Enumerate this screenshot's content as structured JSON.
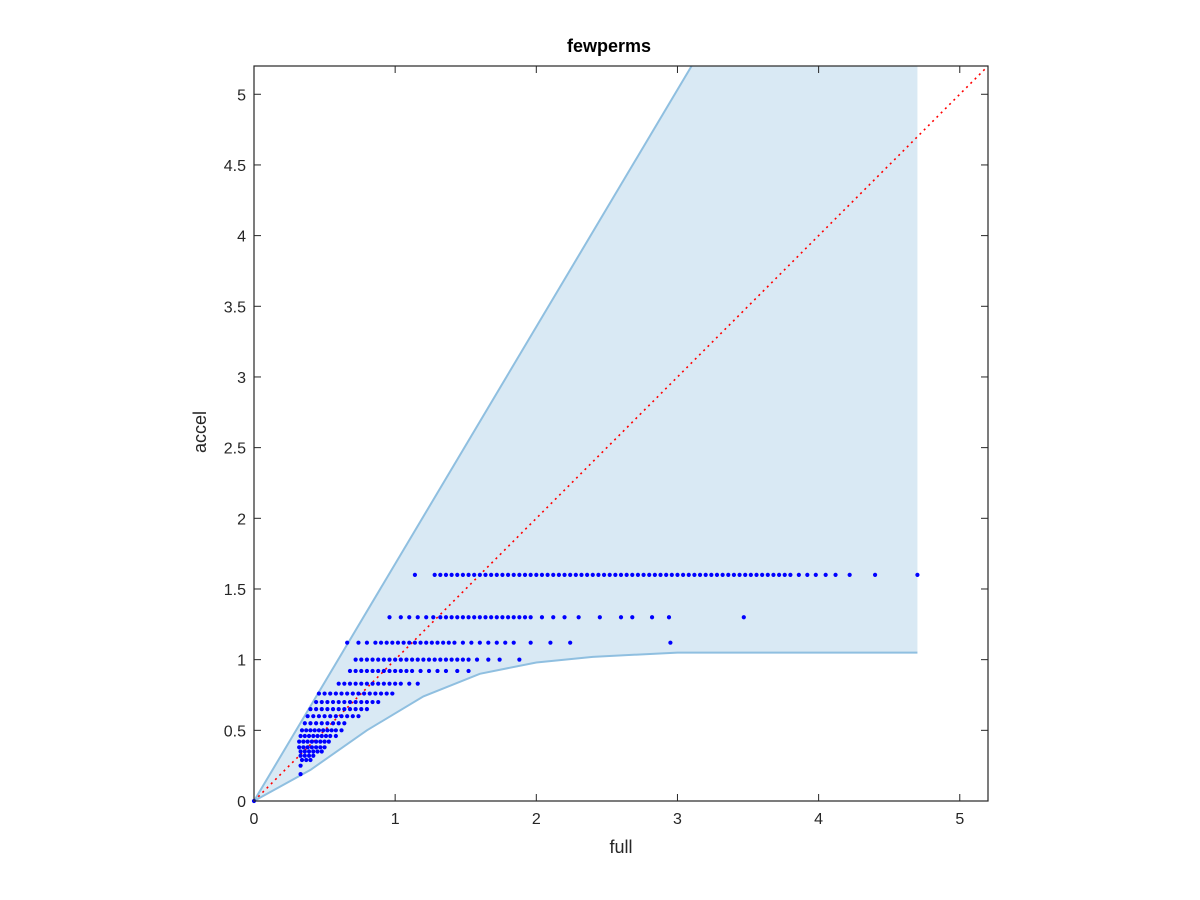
{
  "chart_data": {
    "type": "scatter",
    "title": "fewperms",
    "xlabel": "full",
    "ylabel": "accel",
    "xlim": [
      0,
      5.2
    ],
    "ylim": [
      0,
      5.2
    ],
    "xticks": [
      "0",
      "1",
      "2",
      "3",
      "4",
      "5"
    ],
    "yticks": [
      "0",
      "0.5",
      "1",
      "1.5",
      "2",
      "2.5",
      "3",
      "3.5",
      "4",
      "4.5",
      "5"
    ],
    "grid": false,
    "legend": "none",
    "colors": {
      "points": "#0000ff",
      "band_fill": "#d9e9f4",
      "band_edge": "#8fbfe0",
      "reference_line": "#ff0000",
      "axes": "#262626"
    },
    "reference_line": {
      "from": [
        0,
        0
      ],
      "to": [
        5.2,
        5.2
      ],
      "style": "dotted"
    },
    "band": {
      "upper": [
        [
          0,
          0
        ],
        [
          3.1,
          5.2
        ],
        [
          4.7,
          5.2
        ]
      ],
      "lower": [
        [
          0,
          0
        ],
        [
          0.4,
          0.22
        ],
        [
          0.8,
          0.5
        ],
        [
          1.2,
          0.74
        ],
        [
          1.6,
          0.9
        ],
        [
          2.0,
          0.98
        ],
        [
          2.4,
          1.02
        ],
        [
          3.0,
          1.05
        ],
        [
          4.7,
          1.05
        ]
      ]
    },
    "series": [
      {
        "rows": [
          {
            "y": 1.6,
            "x": [
              1.14,
              1.28,
              1.32,
              1.36,
              1.4,
              1.44,
              1.48,
              1.52,
              1.56,
              1.6,
              1.64,
              1.68,
              1.72,
              1.76,
              1.8,
              1.84,
              1.88,
              1.92,
              1.96,
              2.0,
              2.04,
              2.08,
              2.12,
              2.16,
              2.2,
              2.24,
              2.28,
              2.32,
              2.36,
              2.4,
              2.44,
              2.48,
              2.52,
              2.56,
              2.6,
              2.64,
              2.68,
              2.72,
              2.76,
              2.8,
              2.84,
              2.88,
              2.92,
              2.96,
              3.0,
              3.04,
              3.08,
              3.12,
              3.16,
              3.2,
              3.24,
              3.28,
              3.32,
              3.36,
              3.4,
              3.44,
              3.48,
              3.52,
              3.56,
              3.6,
              3.64,
              3.68,
              3.72,
              3.76,
              3.8,
              3.86,
              3.92,
              3.98,
              4.05,
              4.12,
              4.22,
              4.4,
              4.7
            ]
          },
          {
            "y": 1.3,
            "x": [
              0.96,
              1.04,
              1.1,
              1.16,
              1.22,
              1.27,
              1.32,
              1.36,
              1.4,
              1.44,
              1.48,
              1.52,
              1.56,
              1.6,
              1.64,
              1.68,
              1.72,
              1.76,
              1.8,
              1.84,
              1.88,
              1.92,
              1.96,
              2.04,
              2.12,
              2.2,
              2.3,
              2.45,
              2.6,
              2.68,
              2.82,
              2.94,
              3.47
            ]
          },
          {
            "y": 1.12,
            "x": [
              0.66,
              0.74,
              0.8,
              0.86,
              0.9,
              0.94,
              0.98,
              1.02,
              1.06,
              1.1,
              1.14,
              1.18,
              1.22,
              1.26,
              1.3,
              1.34,
              1.38,
              1.42,
              1.48,
              1.54,
              1.6,
              1.66,
              1.72,
              1.78,
              1.84,
              1.96,
              2.1,
              2.24,
              2.95
            ]
          },
          {
            "y": 1.0,
            "x": [
              0.72,
              0.76,
              0.8,
              0.84,
              0.88,
              0.92,
              0.96,
              1.0,
              1.04,
              1.08,
              1.12,
              1.16,
              1.2,
              1.24,
              1.28,
              1.32,
              1.36,
              1.4,
              1.44,
              1.48,
              1.52,
              1.58,
              1.66,
              1.74,
              1.88
            ]
          },
          {
            "y": 0.92,
            "x": [
              0.68,
              0.72,
              0.76,
              0.8,
              0.84,
              0.88,
              0.92,
              0.96,
              1.0,
              1.04,
              1.08,
              1.12,
              1.18,
              1.24,
              1.3,
              1.36,
              1.44,
              1.52
            ]
          },
          {
            "y": 0.83,
            "x": [
              0.6,
              0.64,
              0.68,
              0.72,
              0.76,
              0.8,
              0.84,
              0.88,
              0.92,
              0.96,
              1.0,
              1.04,
              1.1,
              1.16
            ]
          },
          {
            "y": 0.76,
            "x": [
              0.46,
              0.5,
              0.54,
              0.58,
              0.62,
              0.66,
              0.7,
              0.74,
              0.78,
              0.82,
              0.86,
              0.9,
              0.94,
              0.98
            ]
          },
          {
            "y": 0.7,
            "x": [
              0.44,
              0.48,
              0.52,
              0.56,
              0.6,
              0.64,
              0.68,
              0.72,
              0.76,
              0.8,
              0.84,
              0.88
            ]
          },
          {
            "y": 0.65,
            "x": [
              0.4,
              0.44,
              0.48,
              0.52,
              0.56,
              0.6,
              0.64,
              0.68,
              0.72,
              0.76,
              0.8
            ]
          },
          {
            "y": 0.6,
            "x": [
              0.38,
              0.42,
              0.46,
              0.5,
              0.54,
              0.58,
              0.62,
              0.66,
              0.7,
              0.74
            ]
          },
          {
            "y": 0.55,
            "x": [
              0.36,
              0.4,
              0.44,
              0.48,
              0.52,
              0.56,
              0.6,
              0.64
            ]
          },
          {
            "y": 0.5,
            "x": [
              0.34,
              0.37,
              0.4,
              0.43,
              0.46,
              0.49,
              0.52,
              0.55,
              0.58,
              0.62
            ]
          },
          {
            "y": 0.46,
            "x": [
              0.33,
              0.36,
              0.39,
              0.42,
              0.45,
              0.48,
              0.51,
              0.54,
              0.58
            ]
          },
          {
            "y": 0.42,
            "x": [
              0.32,
              0.35,
              0.38,
              0.41,
              0.44,
              0.47,
              0.5,
              0.53
            ]
          },
          {
            "y": 0.38,
            "x": [
              0.32,
              0.35,
              0.38,
              0.41,
              0.44,
              0.47,
              0.5
            ]
          },
          {
            "y": 0.35,
            "x": [
              0.33,
              0.36,
              0.39,
              0.42,
              0.45,
              0.48
            ]
          },
          {
            "y": 0.32,
            "x": [
              0.33,
              0.36,
              0.39,
              0.42
            ]
          },
          {
            "y": 0.29,
            "x": [
              0.34,
              0.37,
              0.4
            ]
          },
          {
            "y": 0.25,
            "x": [
              0.33
            ]
          },
          {
            "y": 0.19,
            "x": [
              0.33
            ]
          },
          {
            "y": 0.0,
            "x": [
              0.0
            ]
          }
        ]
      }
    ]
  }
}
